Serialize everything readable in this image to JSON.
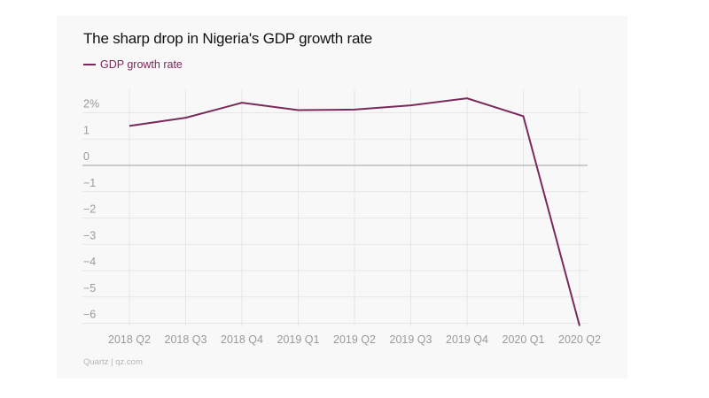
{
  "chart_data": {
    "type": "line",
    "title": "The sharp drop in Nigeria's GDP growth rate",
    "xlabel": "",
    "ylabel": "",
    "categories": [
      "2018 Q2",
      "2018 Q3",
      "2018 Q4",
      "2019 Q1",
      "2019 Q2",
      "2019 Q3",
      "2019 Q4",
      "2020 Q1",
      "2020 Q2"
    ],
    "series": [
      {
        "name": "GDP growth rate",
        "color": "#7a2a5a",
        "values": [
          1.5,
          1.81,
          2.38,
          2.1,
          2.12,
          2.28,
          2.55,
          1.87,
          -6.1
        ]
      }
    ],
    "ylim": [
      -6,
      2
    ],
    "yticks": [
      {
        "value": 2,
        "label": "2%"
      },
      {
        "value": 1,
        "label": "1"
      },
      {
        "value": 0,
        "label": "0"
      },
      {
        "value": -1,
        "label": "−1"
      },
      {
        "value": -2,
        "label": "−2"
      },
      {
        "value": -3,
        "label": "−3"
      },
      {
        "value": -4,
        "label": "−4"
      },
      {
        "value": -5,
        "label": "−5"
      },
      {
        "value": -6,
        "label": "−6"
      }
    ],
    "grid": true,
    "legend_position": "top-left",
    "source": "Quartz | qz.com"
  }
}
